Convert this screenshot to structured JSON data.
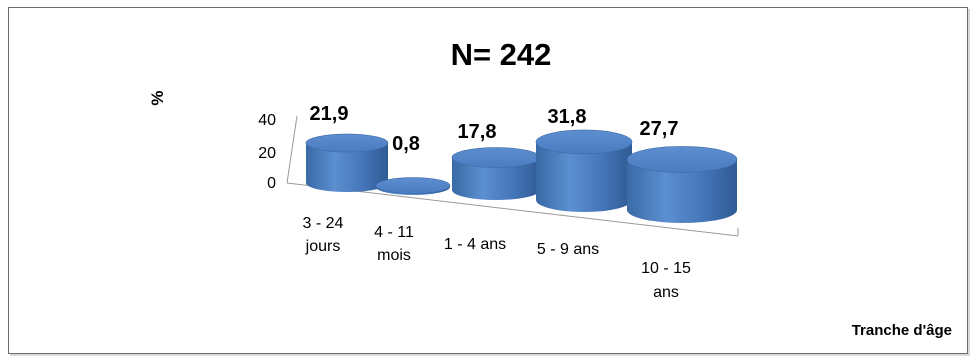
{
  "chart_data": {
    "type": "bar",
    "title": "N= 242",
    "ylabel": "%",
    "xlabel": "Tranche d'âge",
    "categories": [
      [
        "3 - 24",
        "jours"
      ],
      [
        "4 - 11",
        "mois"
      ],
      [
        "1 - 4 ans"
      ],
      [
        "5 - 9 ans"
      ],
      [
        "10 - 15",
        "ans"
      ]
    ],
    "values": [
      21.9,
      0.8,
      17.8,
      31.8,
      27.7
    ],
    "data_labels": [
      "21,9",
      "0,8",
      "17,8",
      "31,8",
      "27,7"
    ],
    "yticks": [
      "0",
      "20",
      "40"
    ],
    "ylim": [
      0,
      40
    ],
    "bar_style": "3d-cylinder",
    "bar_color": "#4f81bd",
    "grid": false,
    "legend": "none"
  }
}
